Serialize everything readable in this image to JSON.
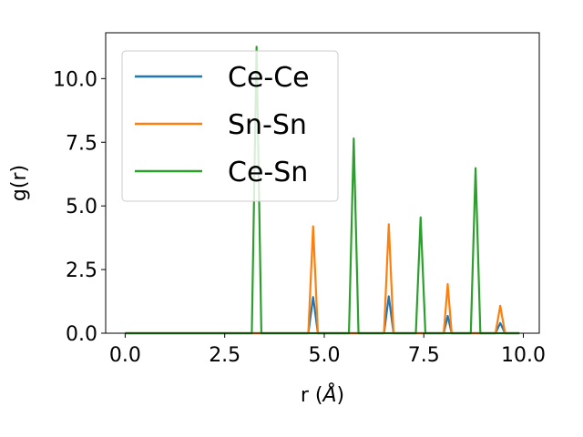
{
  "chart_data": {
    "type": "line",
    "xlabel": "r (",
    "xlabel_symbol": "Å",
    "xlabel_close": ")",
    "ylabel": "g(r)",
    "xlim": [
      -0.49,
      10.4
    ],
    "ylim": [
      0,
      11.8
    ],
    "xticks": [
      0.0,
      2.5,
      5.0,
      7.5,
      10.0
    ],
    "xtick_labels": [
      "0.0",
      "2.5",
      "5.0",
      "7.5",
      "10.0"
    ],
    "yticks": [
      0.0,
      2.5,
      5.0,
      7.5,
      10.0
    ],
    "ytick_labels": [
      "0.0",
      "2.5",
      "5.0",
      "7.5",
      "10.0"
    ],
    "grid": false,
    "legend_position": "top-left",
    "series": [
      {
        "name": "Ce-Ce",
        "color": "#1f77b4",
        "x": [
          0.0,
          4.6,
          4.72,
          4.84,
          6.5,
          6.62,
          6.74,
          8.0,
          8.1,
          8.2,
          9.3,
          9.42,
          9.54,
          9.9
        ],
        "y": [
          0.0,
          0.0,
          1.42,
          0.0,
          0.0,
          1.45,
          0.0,
          0.0,
          0.68,
          0.0,
          0.0,
          0.4,
          0.0,
          0.0
        ]
      },
      {
        "name": "Sn-Sn",
        "color": "#ff7f0e",
        "x": [
          0.0,
          4.6,
          4.72,
          4.84,
          6.5,
          6.62,
          6.74,
          8.0,
          8.1,
          8.2,
          9.3,
          9.42,
          9.54,
          9.9
        ],
        "y": [
          0.0,
          0.0,
          4.2,
          0.0,
          0.0,
          4.28,
          0.0,
          0.0,
          1.93,
          0.0,
          0.0,
          1.08,
          0.0,
          0.0
        ]
      },
      {
        "name": "Ce-Sn",
        "color": "#2ca02c",
        "x": [
          0.0,
          3.18,
          3.3,
          3.42,
          5.62,
          5.74,
          5.86,
          7.3,
          7.42,
          7.54,
          8.68,
          8.8,
          8.92,
          9.9
        ],
        "y": [
          0.0,
          0.0,
          11.25,
          0.0,
          0.0,
          7.65,
          0.0,
          0.0,
          4.55,
          0.0,
          0.0,
          6.48,
          0.0,
          0.0
        ]
      }
    ]
  }
}
